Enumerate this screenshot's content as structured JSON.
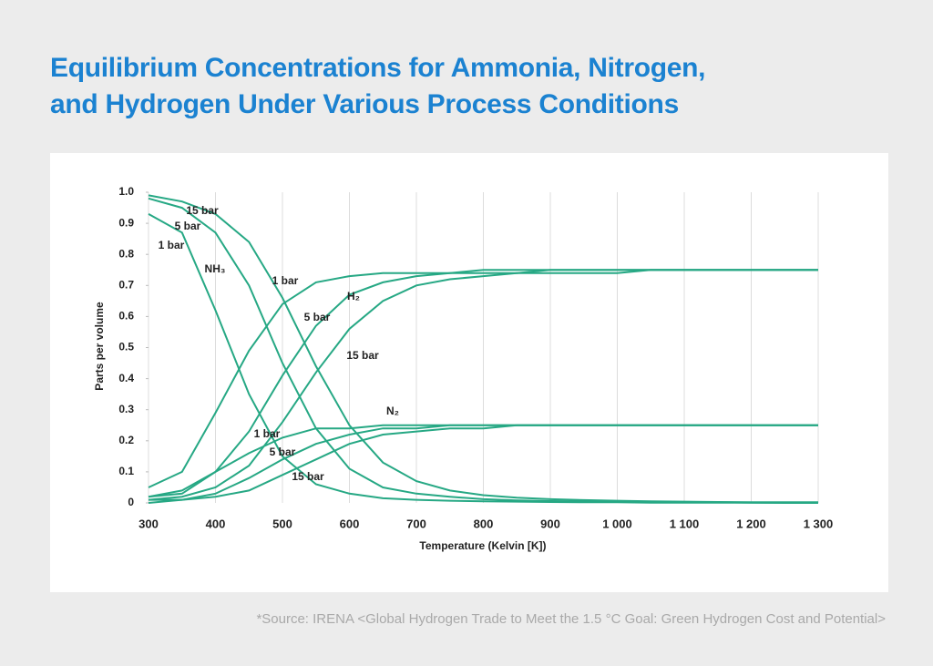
{
  "chart_data": {
    "type": "line",
    "title": [
      "Equilibrium Concentrations for Ammonia, Nitrogen,",
      "and Hydrogen Under Various Process Conditions"
    ],
    "source": "*Source: IRENA <Global Hydrogen Trade to Meet the 1.5 °C Goal: Green Hydrogen Cost and Potential>",
    "xlabel": "Temperature (Kelvin [K])",
    "ylabel": "Parts per volume",
    "x": [
      300,
      350,
      400,
      450,
      500,
      550,
      600,
      650,
      700,
      750,
      800,
      850,
      900,
      950,
      1000,
      1050,
      1100,
      1150,
      1200,
      1250,
      1300
    ],
    "xlim": [
      300,
      1300
    ],
    "xticks": [
      300,
      400,
      500,
      600,
      700,
      800,
      900,
      {
        "value": 1000,
        "label": "1 000"
      },
      {
        "value": 1100,
        "label": "1 100"
      },
      {
        "value": 1200,
        "label": "1 200"
      },
      {
        "value": 1300,
        "label": "1 300"
      }
    ],
    "ylim": [
      0,
      1
    ],
    "yticks": [
      0,
      0.1,
      0.2,
      0.3,
      0.4,
      0.5,
      0.6,
      0.7,
      0.8,
      0.9,
      {
        "value": 1,
        "label": "1.0"
      }
    ],
    "grid": true,
    "series": [
      {
        "color": "#26a884",
        "values": [
          0.93,
          0.87,
          0.62,
          0.35,
          0.15,
          0.06,
          0.03,
          0.015,
          0.01,
          0.007,
          0.005,
          0.004,
          0.003,
          0.002,
          0.002,
          0.001,
          0.001,
          0.001,
          0.001,
          0,
          0
        ]
      },
      {
        "color": "#26a884",
        "values": [
          0.98,
          0.95,
          0.87,
          0.7,
          0.45,
          0.24,
          0.11,
          0.05,
          0.03,
          0.02,
          0.012,
          0.008,
          0.006,
          0.005,
          0.004,
          0.003,
          0.002,
          0.002,
          0.001,
          0.001,
          0.001
        ]
      },
      {
        "color": "#26a884",
        "values": [
          0.99,
          0.97,
          0.93,
          0.84,
          0.66,
          0.44,
          0.25,
          0.13,
          0.07,
          0.04,
          0.025,
          0.017,
          0.012,
          0.009,
          0.007,
          0.005,
          0.004,
          0.003,
          0.002,
          0.002,
          0.002
        ]
      },
      {
        "color": "#26a884",
        "values": [
          0.05,
          0.1,
          0.29,
          0.49,
          0.64,
          0.71,
          0.73,
          0.74,
          0.74,
          0.74,
          0.75,
          0.75,
          0.75,
          0.75,
          0.75,
          0.75,
          0.75,
          0.75,
          0.75,
          0.75,
          0.75
        ]
      },
      {
        "color": "#26a884",
        "values": [
          0.02,
          0.04,
          0.1,
          0.23,
          0.41,
          0.57,
          0.67,
          0.71,
          0.73,
          0.74,
          0.74,
          0.74,
          0.75,
          0.75,
          0.75,
          0.75,
          0.75,
          0.75,
          0.75,
          0.75,
          0.75
        ]
      },
      {
        "color": "#26a884",
        "values": [
          0.01,
          0.02,
          0.05,
          0.12,
          0.26,
          0.42,
          0.56,
          0.65,
          0.7,
          0.72,
          0.73,
          0.74,
          0.74,
          0.74,
          0.74,
          0.75,
          0.75,
          0.75,
          0.75,
          0.75,
          0.75
        ]
      },
      {
        "color": "#26a884",
        "values": [
          0.02,
          0.03,
          0.1,
          0.16,
          0.21,
          0.24,
          0.24,
          0.25,
          0.25,
          0.25,
          0.25,
          0.25,
          0.25,
          0.25,
          0.25,
          0.25,
          0.25,
          0.25,
          0.25,
          0.25,
          0.25
        ]
      },
      {
        "color": "#26a884",
        "values": [
          0.01,
          0.01,
          0.03,
          0.08,
          0.14,
          0.19,
          0.22,
          0.24,
          0.24,
          0.25,
          0.25,
          0.25,
          0.25,
          0.25,
          0.25,
          0.25,
          0.25,
          0.25,
          0.25,
          0.25,
          0.25
        ]
      },
      {
        "color": "#26a884",
        "values": [
          0,
          0.01,
          0.02,
          0.04,
          0.09,
          0.14,
          0.19,
          0.22,
          0.23,
          0.24,
          0.24,
          0.25,
          0.25,
          0.25,
          0.25,
          0.25,
          0.25,
          0.25,
          0.25,
          0.25,
          0.25
        ]
      }
    ],
    "annotations": [
      "15 bar",
      "5 bar",
      "1 bar",
      "NH₃",
      "1 bar",
      "H₂",
      "5 bar",
      "15 bar",
      "N₂",
      "1 bar",
      "5 bar",
      "15 bar"
    ]
  }
}
